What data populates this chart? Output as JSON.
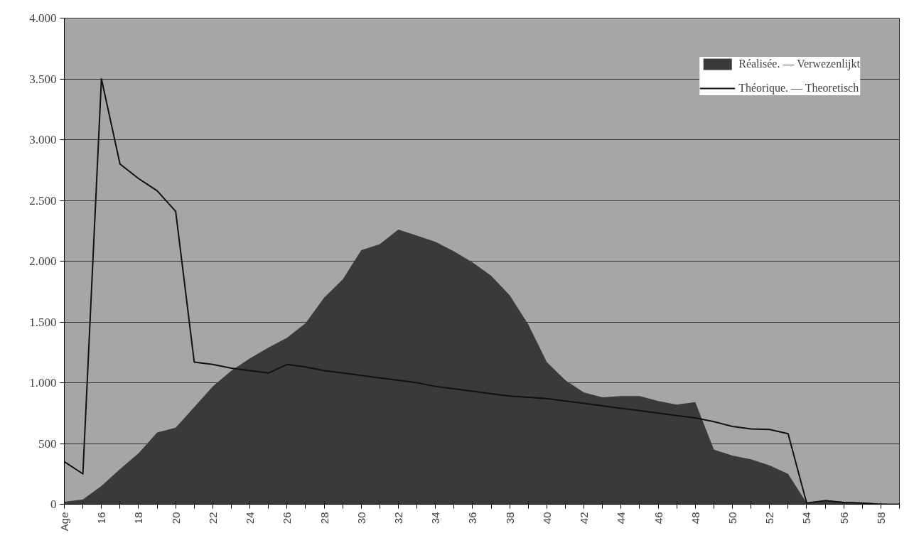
{
  "chart_data": {
    "type": "area",
    "categories": [
      "Age",
      null,
      "16",
      null,
      "18",
      null,
      "20",
      null,
      "22",
      null,
      "24",
      null,
      "26",
      null,
      "28",
      null,
      "30",
      null,
      "32",
      null,
      "34",
      null,
      "36",
      null,
      "38",
      null,
      "40",
      null,
      "42",
      null,
      "44",
      null,
      "46",
      null,
      "48",
      null,
      "50",
      null,
      "52",
      null,
      "54",
      null,
      "56",
      null,
      "58",
      null
    ],
    "series": [
      {
        "name": "Réalisée. — Verwezenlijkt",
        "color": "#3a3a3a",
        "values": [
          20,
          40,
          150,
          290,
          420,
          590,
          630,
          800,
          970,
          1100,
          1200,
          1290,
          1370,
          1490,
          1700,
          1850,
          2090,
          2140,
          2260,
          2210,
          2160,
          2080,
          1990,
          1880,
          1720,
          1480,
          1170,
          1020,
          920,
          880,
          890,
          890,
          850,
          820,
          840,
          450,
          400,
          370,
          320,
          250,
          10,
          30,
          20,
          15,
          5,
          0
        ]
      },
      {
        "name": "Théorique. — Theoretisch",
        "type": "line",
        "color": "#111111",
        "values": [
          350,
          250,
          3500,
          2800,
          2680,
          2580,
          2410,
          1170,
          1150,
          1120,
          1100,
          1080,
          1150,
          1130,
          1100,
          1080,
          1060,
          1040,
          1020,
          1000,
          970,
          950,
          930,
          910,
          890,
          880,
          870,
          850,
          830,
          810,
          790,
          770,
          750,
          730,
          710,
          680,
          640,
          620,
          615,
          580,
          10,
          30,
          15,
          10,
          0,
          0
        ]
      }
    ],
    "ylim": [
      0,
      4000
    ],
    "yticks": [
      0,
      500,
      {
        "value": 1000,
        "label": "1.000"
      },
      {
        "value": 1500,
        "label": "1.500"
      },
      {
        "value": 2000,
        "label": "2.000"
      },
      {
        "value": 2500,
        "label": "2.500"
      },
      {
        "value": 3000,
        "label": "3.000"
      },
      {
        "value": 3500,
        "label": "3.500"
      },
      {
        "value": 4000,
        "label": "4.000"
      }
    ],
    "grid": "y",
    "legend": "top right"
  }
}
